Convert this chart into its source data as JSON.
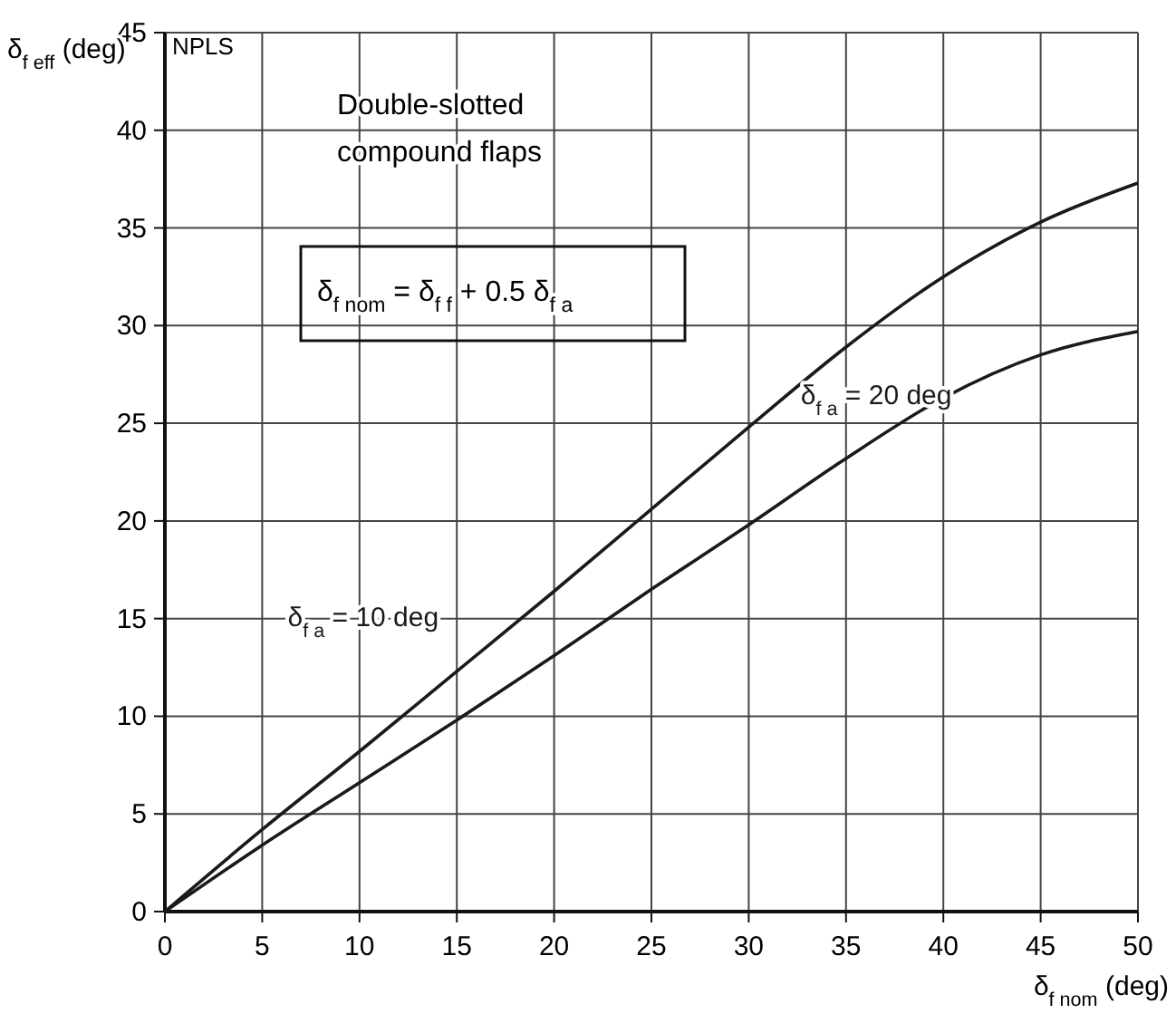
{
  "chart_data": {
    "type": "line",
    "title": "Double-slotted compound flaps",
    "xlabel": "δ$_{f nom}$ (deg)",
    "ylabel": "δ$_{f eff}$ (deg)",
    "annotations": [
      "NPLS",
      "δ$_{f nom}$ = δ$_{f f}$ + 0.5 δ$_{f a}$"
    ],
    "x": [
      0,
      5,
      10,
      15,
      20,
      25,
      30,
      35,
      40,
      45,
      50
    ],
    "series": [
      {
        "name": "δ$_{f a}$ = 10 deg",
        "color": "#1a1a1a",
        "values": [
          0,
          4.2,
          8.2,
          12.3,
          16.4,
          20.6,
          24.8,
          28.9,
          32.5,
          35.3,
          37.3
        ]
      },
      {
        "name": "δ$_{f a}$ = 20 deg",
        "color": "#1a1a1a",
        "values": [
          0,
          3.4,
          6.6,
          9.8,
          13.1,
          16.5,
          19.8,
          23.2,
          26.3,
          28.5,
          29.7
        ]
      }
    ],
    "xlim": [
      0,
      50
    ],
    "ylim": [
      0,
      45
    ],
    "xticks": [
      0,
      5,
      10,
      15,
      20,
      25,
      30,
      35,
      40,
      45,
      50
    ],
    "yticks": [
      0,
      5,
      10,
      15,
      20,
      25,
      30,
      35,
      40,
      45
    ],
    "grid": true,
    "marker": "none",
    "line_style": "solid"
  }
}
